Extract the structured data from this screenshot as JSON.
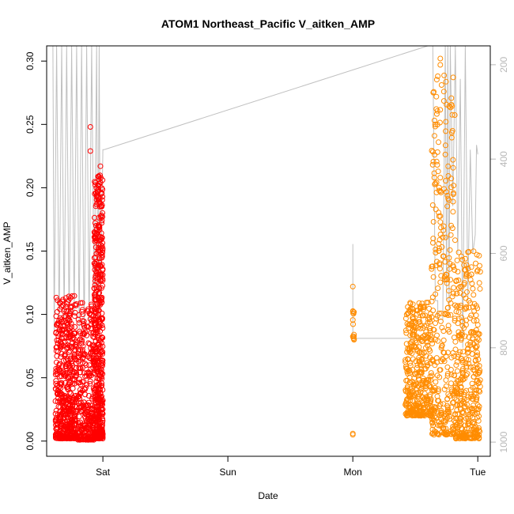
{
  "chart_data": {
    "type": "scatter",
    "title": "ATOM1 Northeast_Pacific V_aitken_AMP",
    "xlabel": "Date",
    "ylabel": "V_aitken_AMP",
    "x_ticks": [
      "Sat",
      "Sun",
      "Mon",
      "Tue"
    ],
    "y_ticks": [
      "0.00",
      "0.05",
      "0.10",
      "0.15",
      "0.20",
      "0.25",
      "0.30"
    ],
    "y_ticks_right": [
      "200",
      "400",
      "600",
      "800",
      "1000"
    ],
    "ylim": [
      -0.012,
      0.312
    ],
    "y2lim": [
      1030,
      160
    ],
    "xlim": [
      -0.45,
      3.1
    ],
    "x_unit": "days after Saturday 00:00",
    "grid": false,
    "colors": {
      "series1": "#ff0000",
      "series2": "#ff8c00",
      "altitude": "#c0c0c0",
      "axis": "#000000",
      "right_axis": "#b8b8b8"
    },
    "series": [
      {
        "color": "#ff0000",
        "clusters": [
          {
            "x": [
              -0.38,
              -0.21
            ],
            "y": [
              0.002,
              0.12
            ],
            "n": 520,
            "peak": 0.115
          },
          {
            "x": [
              -0.2,
              -0.07
            ],
            "y": [
              0.001,
              0.1
            ],
            "n": 300,
            "peak": 0.11
          },
          {
            "x": [
              -0.07,
              0.0
            ],
            "y": [
              0.002,
              0.22
            ],
            "n": 520,
            "peak": 0.21
          }
        ],
        "outliers": [
          {
            "x": -0.1,
            "y": 0.248
          },
          {
            "x": -0.1,
            "y": 0.229
          },
          {
            "x": -0.02,
            "y": 0.217
          },
          {
            "x": -0.03,
            "y": 0.203
          }
        ]
      },
      {
        "color": "#ff8c00",
        "clusters": [
          {
            "x": [
              0.0,
              0.01
            ],
            "y": [
              0.08,
              0.106
            ],
            "n": 14,
            "peak": 0.106,
            "day_offset": 2
          },
          {
            "x": [
              -0.58,
              -0.37
            ],
            "y": [
              0.02,
              0.11
            ],
            "n": 380,
            "peak": 0.11,
            "day_offset": 3
          },
          {
            "x": [
              -0.37,
              -0.18
            ],
            "y": [
              0.005,
              0.3
            ],
            "n": 320,
            "peak": 0.29,
            "day_offset": 3
          },
          {
            "x": [
              -0.18,
              0.02
            ],
            "y": [
              0.002,
              0.155
            ],
            "n": 360,
            "peak": 0.15,
            "day_offset": 3
          }
        ],
        "outliers": [
          {
            "x": 2.0,
            "y": 0.122
          },
          {
            "x": 2.0,
            "y": 0.006
          },
          {
            "x": 2.0,
            "y": 0.005
          },
          {
            "x": 2.7,
            "y": 0.302
          },
          {
            "x": 2.7,
            "y": 0.297
          },
          {
            "x": 2.7,
            "y": 0.173
          },
          {
            "x": 2.7,
            "y": 0.208
          }
        ]
      }
    ],
    "altitude_line": [
      [
        -0.4,
        160
      ],
      [
        -0.39,
        770
      ],
      [
        -0.37,
        160
      ],
      [
        -0.35,
        760
      ],
      [
        -0.33,
        160
      ],
      [
        -0.31,
        740
      ],
      [
        -0.29,
        160
      ],
      [
        -0.27,
        750
      ],
      [
        -0.25,
        160
      ],
      [
        -0.23,
        730
      ],
      [
        -0.21,
        160
      ],
      [
        -0.19,
        760
      ],
      [
        -0.17,
        160
      ],
      [
        -0.15,
        780
      ],
      [
        -0.13,
        160
      ],
      [
        -0.11,
        760
      ],
      [
        -0.09,
        160
      ],
      [
        -0.07,
        720
      ],
      [
        -0.05,
        160
      ],
      [
        -0.04,
        770
      ],
      [
        -0.03,
        160
      ],
      [
        -0.02,
        720
      ],
      [
        0.0,
        380
      ],
      [
        0.01,
        380
      ],
      [
        2.6,
        160
      ],
      [
        2.64,
        160
      ],
      [
        2.66,
        700
      ],
      [
        2.68,
        700
      ],
      [
        2.68,
        740
      ],
      [
        2.72,
        740
      ],
      [
        2.74,
        160
      ],
      [
        2.75,
        700
      ],
      [
        2.76,
        160
      ],
      [
        2.77,
        720
      ],
      [
        2.78,
        160
      ],
      [
        2.8,
        500
      ],
      [
        2.82,
        160
      ],
      [
        2.84,
        600
      ],
      [
        2.86,
        230
      ],
      [
        2.88,
        800
      ],
      [
        2.9,
        160
      ],
      [
        2.92,
        700
      ],
      [
        2.94,
        380
      ],
      [
        2.96,
        600
      ],
      [
        2.98,
        560
      ],
      [
        2.99,
        370
      ],
      [
        3.0,
        390
      ]
    ],
    "altitude_segment_mon": [
      [
        2.0,
        580
      ],
      [
        2.0,
        780
      ],
      [
        2.6,
        780
      ]
    ]
  }
}
